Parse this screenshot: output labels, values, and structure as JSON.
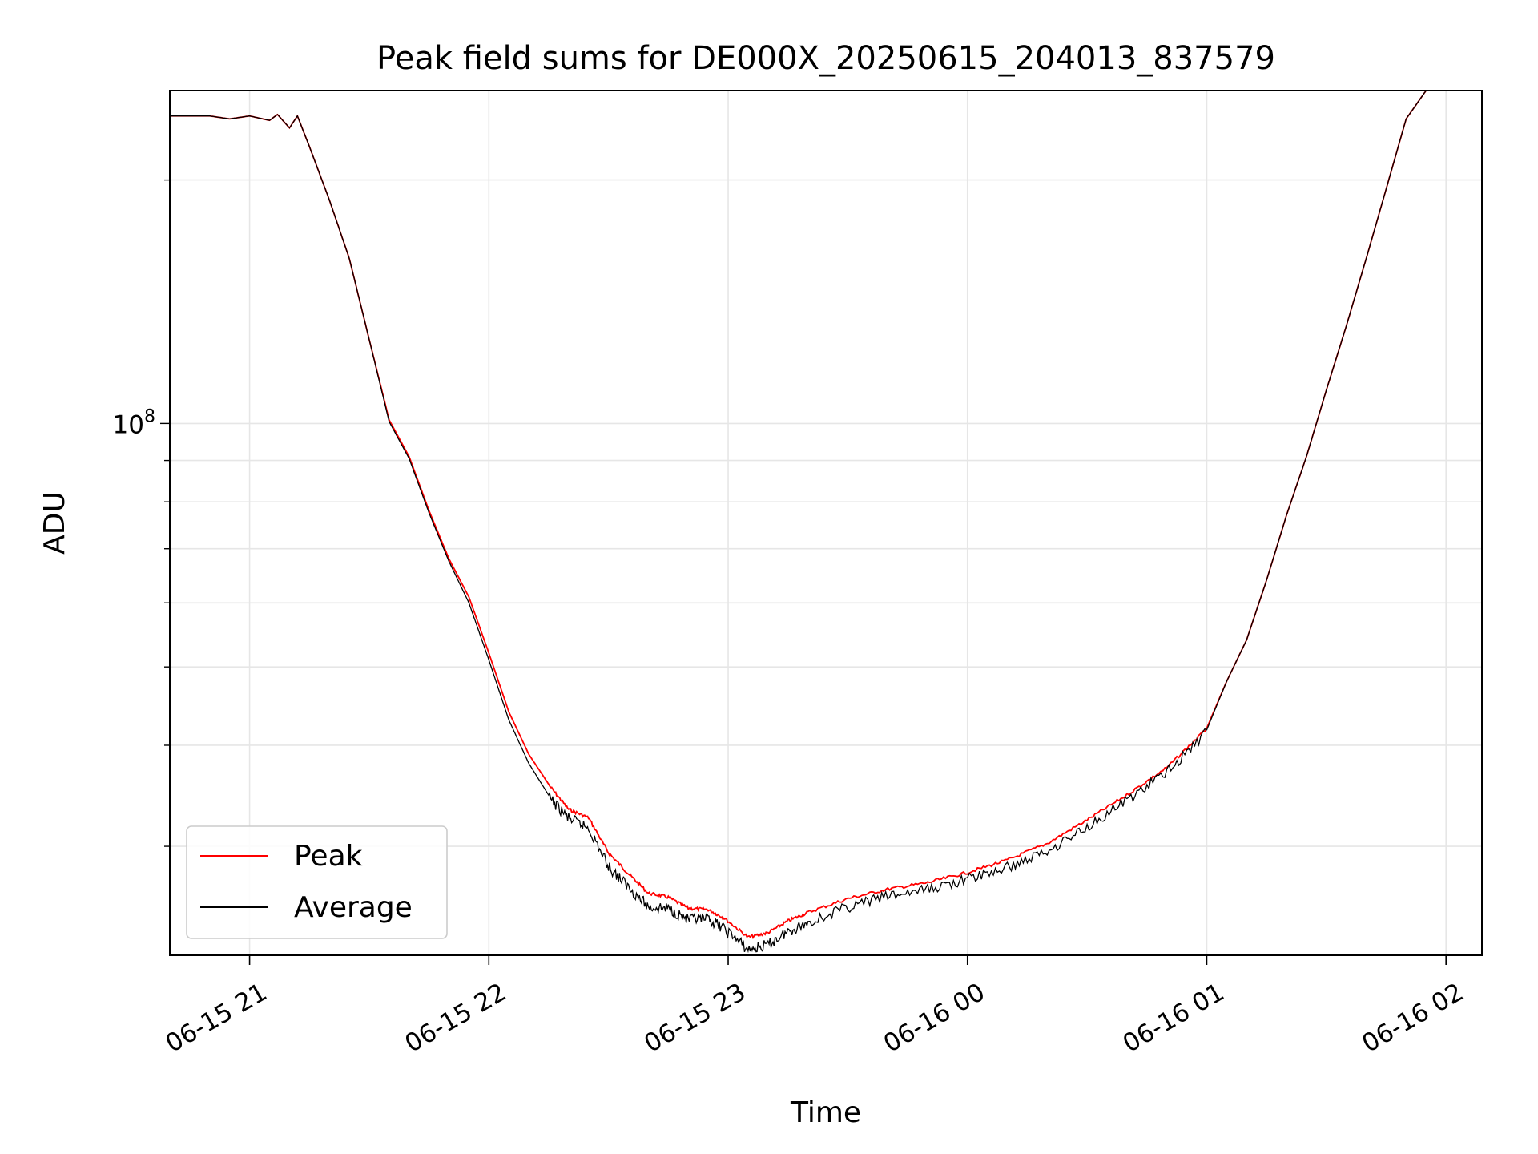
{
  "chart_data": {
    "type": "line",
    "title": "Peak field sums for DE000X_20250615_204013_837579",
    "xlabel": "Time",
    "ylabel": "ADU",
    "yscale": "log",
    "ylim": [
      22000000,
      258000000
    ],
    "xlim": [
      "2025-06-15 20:40",
      "2025-06-16 02:09"
    ],
    "x_ticks": [
      {
        "t": "2025-06-15 21:00",
        "label": "06-15 21"
      },
      {
        "t": "2025-06-15 22:00",
        "label": "06-15 22"
      },
      {
        "t": "2025-06-15 23:00",
        "label": "06-15 23"
      },
      {
        "t": "2025-06-16 00:00",
        "label": "06-16 00"
      },
      {
        "t": "2025-06-16 01:00",
        "label": "06-16 01"
      },
      {
        "t": "2025-06-16 02:00",
        "label": "06-16 02"
      }
    ],
    "y_ticks": [
      {
        "value": 100000000,
        "base": "10",
        "exp": "8"
      }
    ],
    "grid": true,
    "legend_position": "lower-left",
    "series": [
      {
        "name": "Peak",
        "color": "#ff0000",
        "x": [
          "2025-06-15 20:40",
          "2025-06-15 20:45",
          "2025-06-15 20:50",
          "2025-06-15 20:55",
          "2025-06-15 21:00",
          "2025-06-15 21:05",
          "2025-06-15 21:07",
          "2025-06-15 21:10",
          "2025-06-15 21:12",
          "2025-06-15 21:15",
          "2025-06-15 21:20",
          "2025-06-15 21:25",
          "2025-06-15 21:30",
          "2025-06-15 21:35",
          "2025-06-15 21:40",
          "2025-06-15 21:45",
          "2025-06-15 21:50",
          "2025-06-15 21:55",
          "2025-06-15 22:00",
          "2025-06-15 22:05",
          "2025-06-15 22:10",
          "2025-06-15 22:15",
          "2025-06-15 22:20",
          "2025-06-15 22:25",
          "2025-06-15 22:30",
          "2025-06-15 22:35",
          "2025-06-15 22:40",
          "2025-06-15 22:45",
          "2025-06-15 22:50",
          "2025-06-15 22:55",
          "2025-06-15 22:59",
          "2025-06-15 23:05",
          "2025-06-15 23:10",
          "2025-06-15 23:15",
          "2025-06-15 23:20",
          "2025-06-15 23:30",
          "2025-06-15 23:40",
          "2025-06-15 23:50",
          "2025-06-16 00:00",
          "2025-06-16 00:10",
          "2025-06-16 00:20",
          "2025-06-16 00:30",
          "2025-06-16 00:40",
          "2025-06-16 00:50",
          "2025-06-16 01:00",
          "2025-06-16 01:05",
          "2025-06-16 01:10",
          "2025-06-16 01:15",
          "2025-06-16 01:20",
          "2025-06-16 01:25",
          "2025-06-16 01:30",
          "2025-06-16 01:35",
          "2025-06-16 01:40",
          "2025-06-16 01:45",
          "2025-06-16 01:50",
          "2025-06-16 01:55",
          "2025-06-16 02:09"
        ],
        "y": [
          240000000,
          240000000,
          240000000,
          238000000,
          240000000,
          237000000,
          241000000,
          232000000,
          240000000,
          220000000,
          189000000,
          160000000,
          127000000,
          101000000,
          91000000,
          78000000,
          68000000,
          61000000,
          52000000,
          44000000,
          39000000,
          35800000,
          33400000,
          32600000,
          29500000,
          27800000,
          26300000,
          26000000,
          25200000,
          25100000,
          24500000,
          23200000,
          23500000,
          24300000,
          24900000,
          25900000,
          26600000,
          27100000,
          27900000,
          28900000,
          30300000,
          32400000,
          34800000,
          37600000,
          42000000,
          48000000,
          54000000,
          64000000,
          77000000,
          91000000,
          110000000,
          132000000,
          160000000,
          195000000,
          238000000,
          258000000,
          258000000
        ]
      },
      {
        "name": "Average",
        "color": "#000000",
        "x": [
          "2025-06-15 20:40",
          "2025-06-15 20:45",
          "2025-06-15 20:50",
          "2025-06-15 20:55",
          "2025-06-15 21:00",
          "2025-06-15 21:05",
          "2025-06-15 21:07",
          "2025-06-15 21:10",
          "2025-06-15 21:12",
          "2025-06-15 21:15",
          "2025-06-15 21:20",
          "2025-06-15 21:25",
          "2025-06-15 21:30",
          "2025-06-15 21:35",
          "2025-06-15 21:40",
          "2025-06-15 21:45",
          "2025-06-15 21:50",
          "2025-06-15 21:55",
          "2025-06-15 22:00",
          "2025-06-15 22:05",
          "2025-06-15 22:10",
          "2025-06-15 22:15",
          "2025-06-15 22:20",
          "2025-06-15 22:25",
          "2025-06-15 22:30",
          "2025-06-15 22:35",
          "2025-06-15 22:40",
          "2025-06-15 22:45",
          "2025-06-15 22:50",
          "2025-06-15 22:55",
          "2025-06-15 22:59",
          "2025-06-15 23:05",
          "2025-06-15 23:10",
          "2025-06-15 23:15",
          "2025-06-15 23:20",
          "2025-06-15 23:30",
          "2025-06-15 23:40",
          "2025-06-15 23:50",
          "2025-06-16 00:00",
          "2025-06-16 00:10",
          "2025-06-16 00:20",
          "2025-06-16 00:30",
          "2025-06-16 00:40",
          "2025-06-16 00:50",
          "2025-06-16 01:00",
          "2025-06-16 01:05",
          "2025-06-16 01:10",
          "2025-06-16 01:15",
          "2025-06-16 01:20",
          "2025-06-16 01:25",
          "2025-06-16 01:30",
          "2025-06-16 01:35",
          "2025-06-16 01:40",
          "2025-06-16 01:45",
          "2025-06-16 01:50",
          "2025-06-16 01:55",
          "2025-06-16 02:09"
        ],
        "y": [
          240000000,
          240000000,
          240000000,
          238000000,
          240000000,
          237000000,
          241000000,
          232000000,
          240000000,
          220000000,
          189000000,
          160000000,
          127000000,
          100500000,
          90500000,
          77500000,
          67500000,
          60000000,
          51000000,
          43000000,
          38000000,
          34700000,
          32700000,
          31800000,
          28500000,
          26900000,
          25400000,
          25300000,
          24500000,
          24500000,
          23900000,
          22500000,
          22800000,
          23700000,
          24300000,
          25400000,
          26200000,
          26700000,
          27500000,
          28400000,
          29800000,
          31900000,
          34400000,
          37300000,
          41800000,
          48000000,
          54000000,
          64000000,
          77000000,
          91000000,
          110000000,
          132000000,
          160000000,
          195000000,
          238000000,
          258000000,
          258000000
        ]
      }
    ]
  }
}
